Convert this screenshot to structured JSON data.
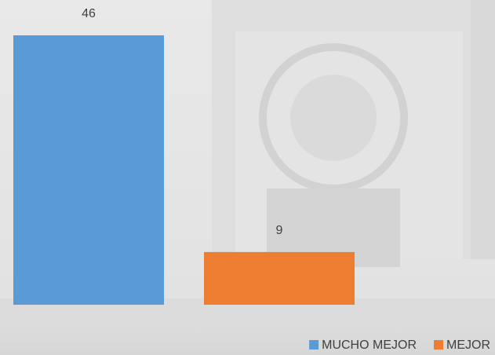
{
  "chart_data": {
    "type": "bar",
    "categories": [
      null
    ],
    "series": [
      {
        "name": "MUCHO MEJOR",
        "color": "#5b9bd5",
        "values": [
          46
        ]
      },
      {
        "name": "MEJOR",
        "color": "#ed7d31",
        "values": [
          9
        ]
      }
    ],
    "legend": "bottom-right"
  }
}
